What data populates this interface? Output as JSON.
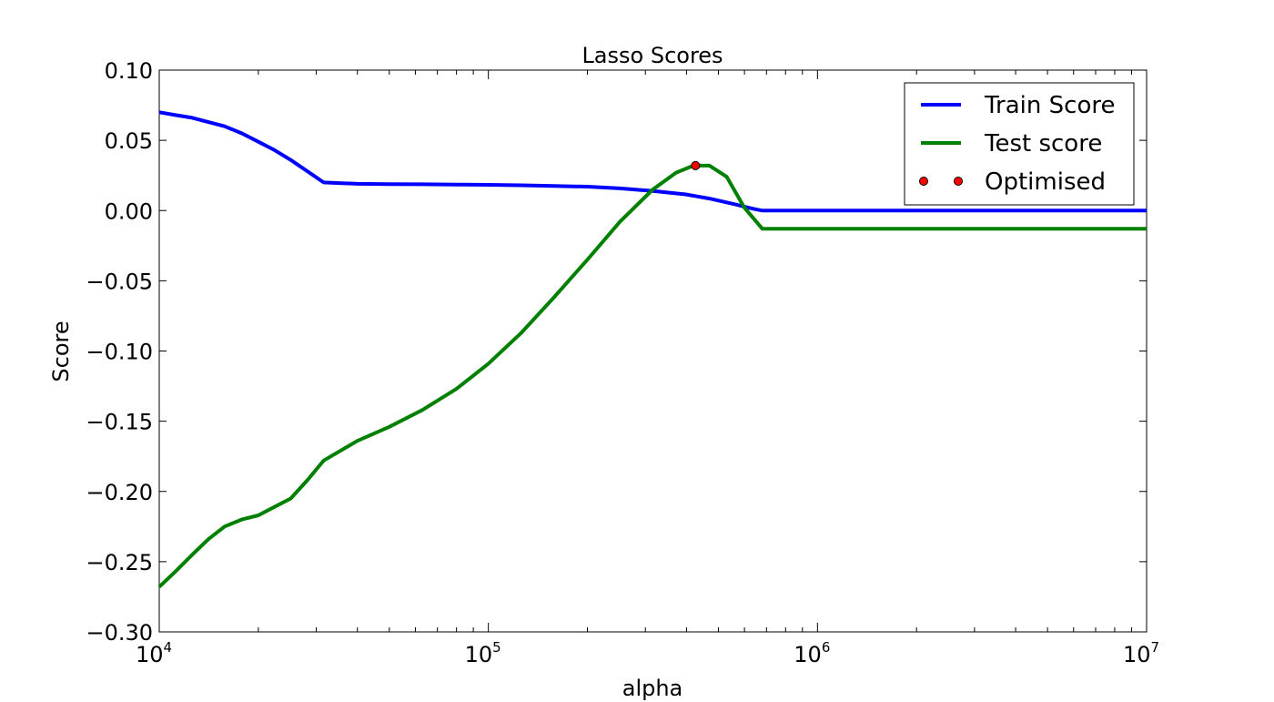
{
  "chart_data": {
    "type": "line",
    "title": "Lasso Scores",
    "xlabel": "alpha",
    "ylabel": "Score",
    "xscale": "log",
    "xlim": [
      10000,
      10000000
    ],
    "ylim": [
      -0.3,
      0.1
    ],
    "x_ticks": [
      {
        "value": 10000,
        "base": "10",
        "exp": "4"
      },
      {
        "value": 100000,
        "base": "10",
        "exp": "5"
      },
      {
        "value": 1000000,
        "base": "10",
        "exp": "6"
      },
      {
        "value": 10000000,
        "base": "10",
        "exp": "7"
      }
    ],
    "y_ticks": [
      {
        "value": 0.1,
        "label": "0.10"
      },
      {
        "value": 0.05,
        "label": "0.05"
      },
      {
        "value": 0.0,
        "label": "0.00"
      },
      {
        "value": -0.05,
        "label": "−0.05"
      },
      {
        "value": -0.1,
        "label": "−0.10"
      },
      {
        "value": -0.15,
        "label": "−0.15"
      },
      {
        "value": -0.2,
        "label": "−0.20"
      },
      {
        "value": -0.25,
        "label": "−0.25"
      },
      {
        "value": -0.3,
        "label": "−0.30"
      }
    ],
    "grid": false,
    "legend_position": "top-right",
    "series": [
      {
        "name": "Train Score",
        "color": "#0000ff",
        "style": "line",
        "points": [
          [
            10000,
            0.07
          ],
          [
            11200,
            0.068
          ],
          [
            12600,
            0.066
          ],
          [
            14100,
            0.063
          ],
          [
            15800,
            0.06
          ],
          [
            17800,
            0.055
          ],
          [
            20000,
            0.049
          ],
          [
            22400,
            0.043
          ],
          [
            25100,
            0.036
          ],
          [
            28200,
            0.028
          ],
          [
            31600,
            0.02
          ],
          [
            40000,
            0.019
          ],
          [
            50000,
            0.0188
          ],
          [
            63000,
            0.0187
          ],
          [
            80000,
            0.0185
          ],
          [
            100000,
            0.0183
          ],
          [
            126000,
            0.018
          ],
          [
            158000,
            0.0175
          ],
          [
            200000,
            0.017
          ],
          [
            251000,
            0.0158
          ],
          [
            316000,
            0.014
          ],
          [
            398000,
            0.0115
          ],
          [
            470000,
            0.0085
          ],
          [
            560000,
            0.0045
          ],
          [
            631000,
            0.0015
          ],
          [
            680000,
            0.0
          ],
          [
            1000000,
            0.0
          ],
          [
            3000000,
            0.0
          ],
          [
            10000000,
            0.0
          ]
        ]
      },
      {
        "name": "Test score",
        "color": "#008000",
        "style": "line",
        "points": [
          [
            10000,
            -0.268
          ],
          [
            11200,
            -0.257
          ],
          [
            12600,
            -0.245
          ],
          [
            14100,
            -0.234
          ],
          [
            15800,
            -0.225
          ],
          [
            17800,
            -0.22
          ],
          [
            20000,
            -0.217
          ],
          [
            22400,
            -0.211
          ],
          [
            25100,
            -0.205
          ],
          [
            28200,
            -0.192
          ],
          [
            31600,
            -0.178
          ],
          [
            40000,
            -0.164
          ],
          [
            50000,
            -0.154
          ],
          [
            63000,
            -0.142
          ],
          [
            80000,
            -0.127
          ],
          [
            100000,
            -0.109
          ],
          [
            126000,
            -0.087
          ],
          [
            158000,
            -0.062
          ],
          [
            200000,
            -0.035
          ],
          [
            251000,
            -0.008
          ],
          [
            316000,
            0.015
          ],
          [
            372000,
            0.027
          ],
          [
            420000,
            0.032
          ],
          [
            470000,
            0.032
          ],
          [
            530000,
            0.024
          ],
          [
            600000,
            0.002
          ],
          [
            680000,
            -0.013
          ],
          [
            1000000,
            -0.013
          ],
          [
            3000000,
            -0.013
          ],
          [
            10000000,
            -0.013
          ]
        ]
      },
      {
        "name": "Optimised",
        "color": "#ff0000",
        "style": "marker",
        "points": [
          [
            426000,
            0.032
          ]
        ]
      }
    ]
  }
}
